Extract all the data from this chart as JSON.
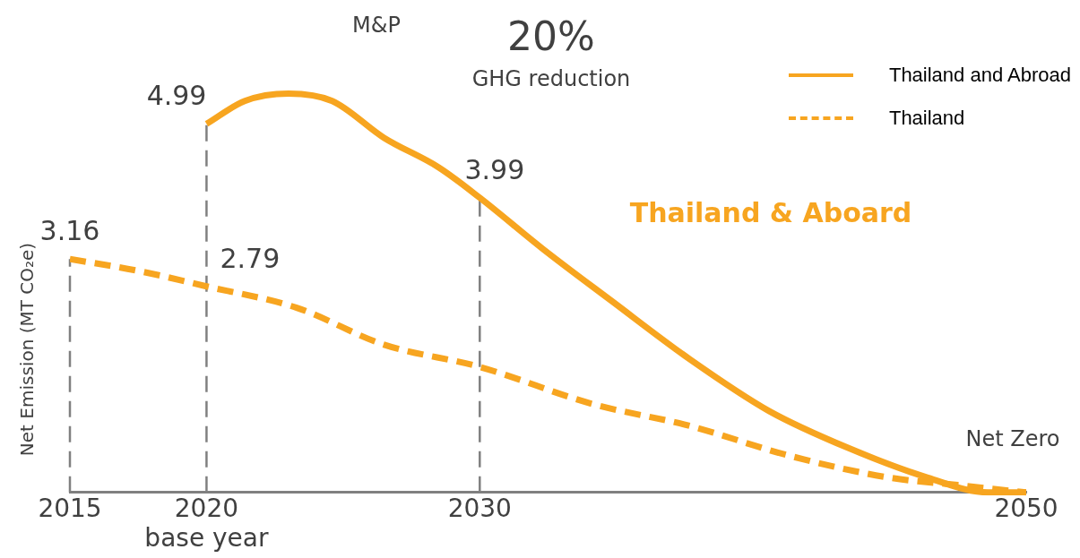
{
  "chart_data": {
    "type": "line",
    "ylabel": "Net Emission (MT CO₂e)",
    "x": [
      2020,
      2021.4,
      2023,
      2024.6,
      2026.5,
      2028.5,
      2030,
      2032.3,
      2034.8,
      2037.7,
      2040.6,
      2043.5,
      2046.4,
      2048.6,
      2050
    ],
    "series": [
      {
        "name": "Thailand and Abroad",
        "color": "#f7a520",
        "line_style": "solid",
        "values": [
          4.99,
          5.3,
          5.4,
          5.3,
          4.8,
          4.4,
          3.99,
          3.3,
          2.6,
          1.8,
          1.1,
          0.6,
          0.2,
          0,
          0
        ],
        "value_labels": [
          "4.99",
          null,
          null,
          null,
          null,
          null,
          "3.99",
          null,
          null,
          null,
          null,
          null,
          null,
          null,
          null
        ]
      },
      {
        "name": "Thailand",
        "color": "#f7a520",
        "line_style": "dashed",
        "x": [
          2015,
          2017.5,
          2020,
          2023.3,
          2026.5,
          2030,
          2034.1,
          2037.7,
          2041.3,
          2045,
          2047.5,
          2050
        ],
        "values": [
          3.16,
          3.0,
          2.79,
          2.5,
          2.0,
          1.7,
          1.2,
          0.9,
          0.5,
          0.2,
          0.1,
          0
        ],
        "value_labels": [
          "3.16",
          null,
          "2.79",
          null,
          null,
          null,
          null,
          null,
          null,
          null,
          null,
          null
        ]
      }
    ],
    "xlim": [
      2015,
      2050
    ],
    "xticks": [
      2015,
      {
        "value": 2020,
        "label": "2020\nbase year"
      },
      2030,
      2050
    ],
    "tick_labels": "x",
    "grid": false,
    "legend": "top right",
    "marker": "none",
    "ref_lines": [
      {
        "axis": "x",
        "value": 2015,
        "color": "#808080",
        "line_style": "dashed"
      },
      {
        "axis": "x",
        "value": 2020,
        "color": "#808080",
        "line_style": "dashed"
      },
      {
        "axis": "x",
        "value": 2030,
        "color": "#808080",
        "line_style": "dashed"
      }
    ],
    "annotations": [
      "M&P",
      "20%",
      "GHG reduction",
      "Thailand & Aboard",
      "Net Zero"
    ]
  }
}
